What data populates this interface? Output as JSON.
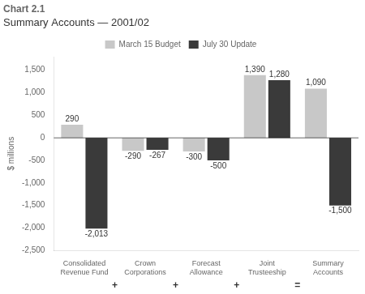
{
  "chart_data": {
    "type": "bar",
    "title": "Chart 2.1",
    "subtitle": "Summary Accounts — 2001/02",
    "y_label": "$ millions",
    "categories": [
      "Consolidated\nRevenue Fund",
      "Crown\nCorporations",
      "Forecast\nAllowance",
      "Joint\nTrusteeship",
      "Summary\nAccounts"
    ],
    "series": [
      {
        "name": "March 15 Budget",
        "color": "#c8c8c8",
        "values": [
          290,
          -290,
          -300,
          1390,
          1090
        ],
        "value_labels": [
          "290",
          "-290",
          "-300",
          "1,390",
          "1,090"
        ]
      },
      {
        "name": "July 30 Update",
        "color": "#3a3a3a",
        "values": [
          -2013,
          -267,
          -500,
          1280,
          -1500
        ],
        "value_labels": [
          "-2,013",
          "-267",
          "-500",
          "1,280",
          "-1,500"
        ]
      }
    ],
    "annotations": [
      "+",
      "+",
      "+",
      "="
    ],
    "ylim": [
      -2500,
      1800
    ],
    "yticks": [
      {
        "value": -2500,
        "label": "-2,500"
      },
      {
        "value": -2000,
        "label": "-2,000"
      },
      {
        "value": -1500,
        "label": "-1,500"
      },
      {
        "value": -1000,
        "label": "-1,000"
      },
      -500,
      0,
      500,
      {
        "value": 1000,
        "label": "1,000"
      },
      {
        "value": 1500,
        "label": "1,500"
      }
    ],
    "grid": false,
    "legend": "top",
    "data_labels": true
  }
}
